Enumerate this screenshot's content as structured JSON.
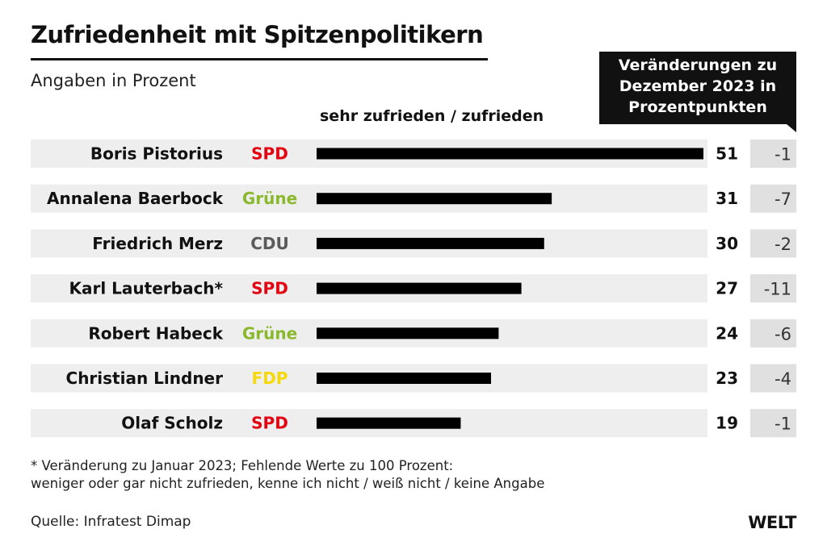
{
  "title": "Zufriedenheit mit Spitzenpolitikern",
  "subtitle": "Angaben in Prozent",
  "column_header": "sehr zufrieden / zufrieden",
  "change_header": [
    "Veränderungen zu",
    "Dezember 2023 in",
    "Prozentpunkten"
  ],
  "footnote": [
    "* Veränderung zu Januar 2023; Fehlende Werte zu 100 Prozent:",
    "weniger oder gar nicht zufrieden, kenne ich nicht / weiß nicht / keine Angabe"
  ],
  "source": "Quelle: Infratest Dimap",
  "logo": "WELT",
  "colors": {
    "bar": "#000000",
    "row_background": "#eeeeee",
    "change_background": "#e0e0e0",
    "SPD": "#e3000f",
    "Grüne": "#8ab92d",
    "CDU": "#5a5a5a",
    "FDP": "#f5d90a"
  },
  "chart_data": {
    "type": "bar",
    "orientation": "horizontal",
    "xlim": [
      0,
      51
    ],
    "categories": [
      "Boris Pistorius",
      "Annalena Baerbock",
      "Friedrich Merz",
      "Karl Lauterbach*",
      "Robert Habeck",
      "Christian Lindner",
      "Olaf Scholz"
    ],
    "parties": [
      "SPD",
      "Grüne",
      "CDU",
      "SPD",
      "Grüne",
      "FDP",
      "SPD"
    ],
    "values": [
      51,
      31,
      30,
      27,
      24,
      23,
      19
    ],
    "changes": [
      "-1",
      "-7",
      "-2",
      "-11",
      "-6",
      "-4",
      "-1"
    ]
  }
}
